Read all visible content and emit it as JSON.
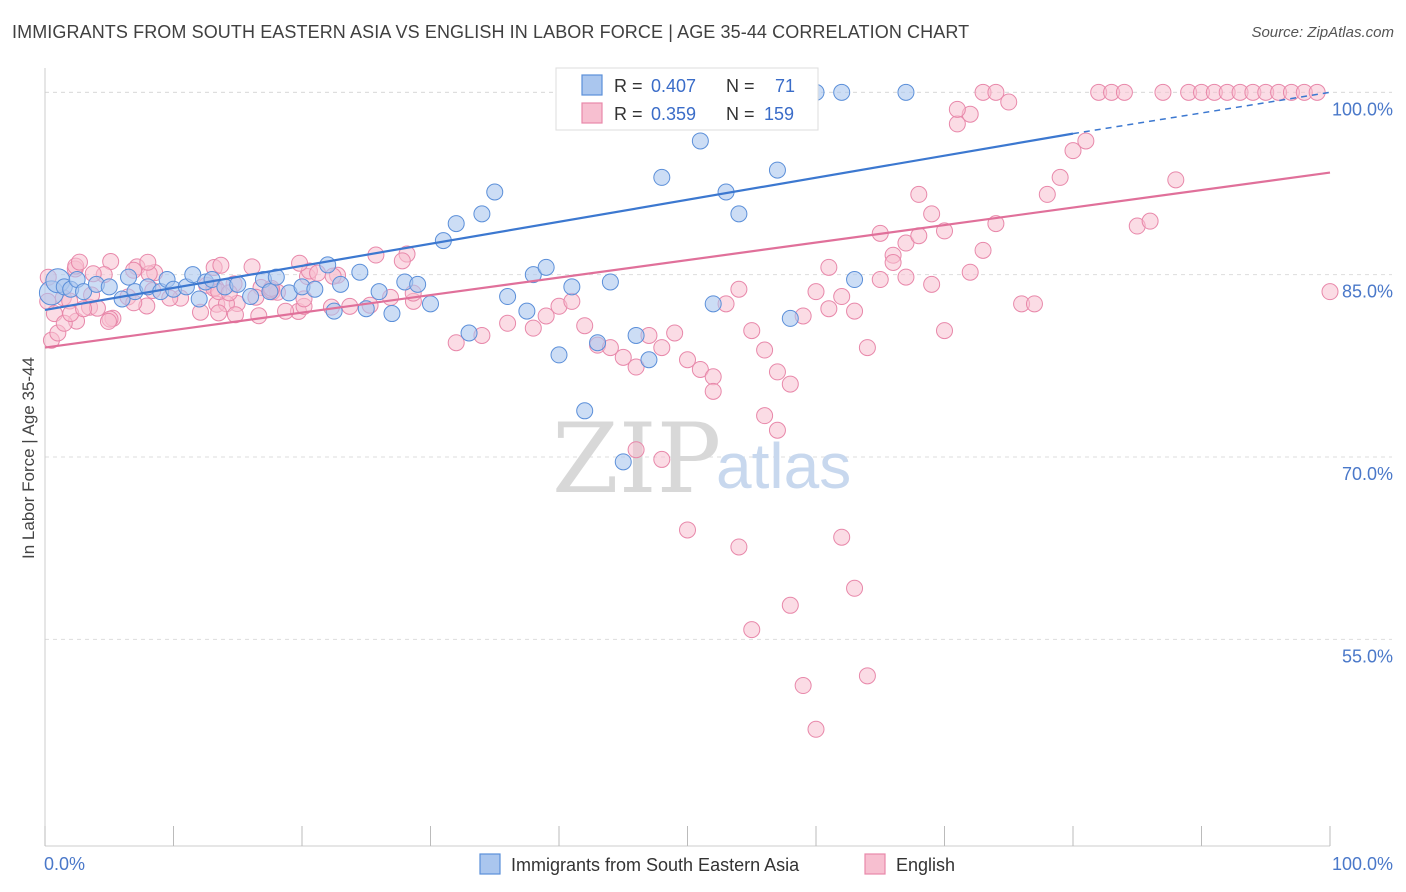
{
  "title": "IMMIGRANTS FROM SOUTH EASTERN ASIA VS ENGLISH IN LABOR FORCE | AGE 35-44 CORRELATION CHART",
  "source": "Source: ZipAtlas.com",
  "watermark": {
    "zip": "ZIP",
    "atlas": "atlas"
  },
  "colors": {
    "blue_fill": "#aac6ee",
    "blue_stroke": "#5b8fd9",
    "blue_line": "#3c78d0",
    "pink_fill": "#f7bfd0",
    "pink_stroke": "#e888aa",
    "pink_line": "#e0709a",
    "grid": "#dddddd",
    "tick_text": "#4a78c9"
  },
  "legend_top": {
    "rows": [
      {
        "r_label": "R =",
        "r_value": "0.407",
        "n_label": "N =",
        "n_value": "71"
      },
      {
        "r_label": "R =",
        "r_value": "0.359",
        "n_label": "N =",
        "n_value": "159"
      }
    ]
  },
  "legend_bottom": {
    "items": [
      "Immigrants from South Eastern Asia",
      "English"
    ]
  },
  "chart_data": {
    "type": "scatter",
    "xlabel": "",
    "ylabel": "In Labor Force | Age 35-44",
    "xlim": [
      0,
      100
    ],
    "ylim": [
      38,
      102
    ],
    "x_tick_labels": [
      "0.0%",
      "100.0%"
    ],
    "y_ticks": [
      55,
      70,
      85,
      100
    ],
    "y_tick_labels": [
      "55.0%",
      "70.0%",
      "85.0%",
      "100.0%"
    ],
    "grid": true,
    "legend_position": "bottom",
    "series": [
      {
        "name": "Immigrants from South Eastern Asia",
        "r": 0.407,
        "n": 71,
        "trend": {
          "x0": 0,
          "y0": 82.1,
          "x1": 80,
          "y1": 96.6,
          "dash_to": 100,
          "dash_y": 100.0
        },
        "points": [
          [
            0.5,
            83.5,
            2
          ],
          [
            1.0,
            84.5,
            2
          ],
          [
            1.5,
            84.0,
            1
          ],
          [
            2.0,
            83.8,
            1
          ],
          [
            2.5,
            84.6,
            1
          ],
          [
            3.0,
            83.6,
            1
          ],
          [
            4.0,
            84.2,
            1
          ],
          [
            5.0,
            84.0,
            1
          ],
          [
            6.0,
            83.0,
            1
          ],
          [
            6.5,
            84.8,
            1
          ],
          [
            7.0,
            83.6,
            1
          ],
          [
            8.0,
            84.0,
            1
          ],
          [
            9.0,
            83.6,
            1
          ],
          [
            9.5,
            84.6,
            1
          ],
          [
            10.0,
            83.8,
            1
          ],
          [
            11.0,
            84.0,
            1
          ],
          [
            11.5,
            85.0,
            1
          ],
          [
            12.0,
            83.0,
            1
          ],
          [
            12.5,
            84.4,
            1
          ],
          [
            13.0,
            84.6,
            1
          ],
          [
            14.0,
            84.0,
            1
          ],
          [
            15.0,
            84.2,
            1
          ],
          [
            16.0,
            83.2,
            1
          ],
          [
            17.0,
            84.6,
            1
          ],
          [
            17.5,
            83.6,
            1
          ],
          [
            18.0,
            84.8,
            1
          ],
          [
            19.0,
            83.5,
            1
          ],
          [
            20.0,
            84.0,
            1
          ],
          [
            21.0,
            83.8,
            1
          ],
          [
            22.0,
            85.8,
            1
          ],
          [
            22.5,
            82.0,
            1
          ],
          [
            23.0,
            84.2,
            1
          ],
          [
            24.5,
            85.2,
            1
          ],
          [
            25.0,
            82.2,
            1
          ],
          [
            26.0,
            83.6,
            1
          ],
          [
            27.0,
            81.8,
            1
          ],
          [
            28.0,
            84.4,
            1
          ],
          [
            29.0,
            84.2,
            1
          ],
          [
            30.0,
            82.6,
            1
          ],
          [
            31.0,
            87.8,
            1
          ],
          [
            32.0,
            89.2,
            1
          ],
          [
            33.0,
            80.2,
            1
          ],
          [
            34.0,
            90.0,
            1
          ],
          [
            35.0,
            91.8,
            1
          ],
          [
            36.0,
            83.2,
            1
          ],
          [
            37.5,
            82.0,
            1
          ],
          [
            38.0,
            85.0,
            1
          ],
          [
            39.0,
            85.6,
            1
          ],
          [
            40.0,
            78.4,
            1
          ],
          [
            41.0,
            84.0,
            1
          ],
          [
            42.0,
            73.8,
            1
          ],
          [
            43.0,
            79.4,
            1
          ],
          [
            44.0,
            84.4,
            1
          ],
          [
            45.0,
            69.6,
            1
          ],
          [
            46.0,
            80.0,
            1
          ],
          [
            47.0,
            78.0,
            1
          ],
          [
            48.0,
            93.0,
            1
          ],
          [
            49.0,
            100.0,
            1
          ],
          [
            50.0,
            100.0,
            1
          ],
          [
            51.0,
            96.0,
            1
          ],
          [
            52.0,
            82.6,
            1
          ],
          [
            53.0,
            91.8,
            1
          ],
          [
            54.0,
            90.0,
            1
          ],
          [
            55.0,
            100.0,
            1
          ],
          [
            56.0,
            100.0,
            1
          ],
          [
            57.0,
            93.6,
            1
          ],
          [
            58.0,
            81.4,
            1
          ],
          [
            60.0,
            100.0,
            1
          ],
          [
            62.0,
            100.0,
            1
          ],
          [
            63.0,
            84.6,
            1
          ],
          [
            67.0,
            100.0,
            1
          ]
        ]
      },
      {
        "name": "English",
        "r": 0.359,
        "n": 159,
        "trend": {
          "x0": 0,
          "y0": 79.0,
          "x1": 100,
          "y1": 93.4
        },
        "points": []
      }
    ]
  }
}
